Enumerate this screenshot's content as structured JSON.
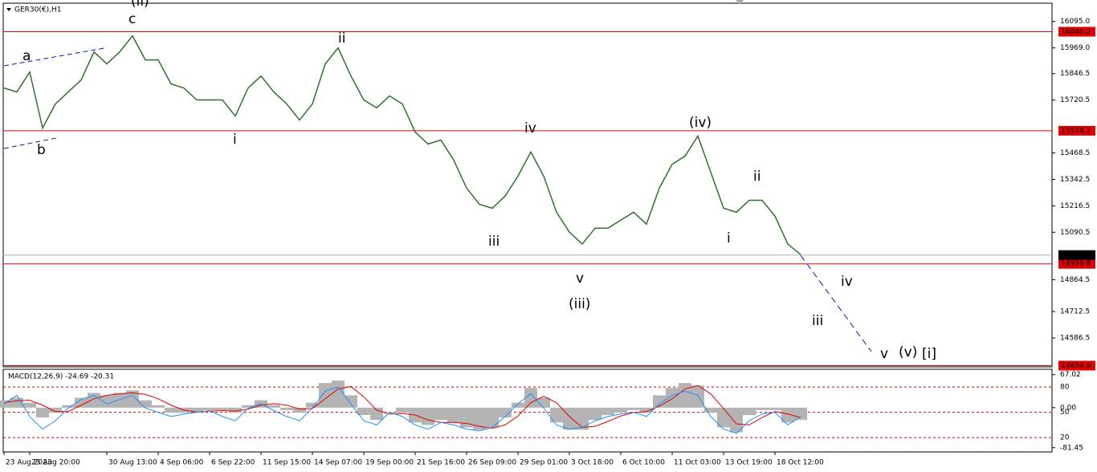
{
  "chart_data": [
    {
      "type": "line",
      "title": "GER30(€),H1",
      "color": "#2f6f2f",
      "categories": [
        "23 Aug 2023",
        null,
        "25 Aug 20:00",
        null,
        null,
        null,
        null,
        null,
        "30 Aug 13:00",
        null,
        null,
        null,
        "4 Sep 06:00",
        null,
        null,
        null,
        "6 Sep 22:00",
        null,
        null,
        null,
        "11 Sep 15:00",
        null,
        null,
        null,
        "14 Sep 07:00",
        null,
        null,
        null,
        "19 Sep 00:00",
        null,
        null,
        null,
        "21 Sep 16:00",
        null,
        null,
        null,
        "26 Sep 09:00",
        null,
        null,
        null,
        "29 Sep 01:00",
        null,
        null,
        null,
        "3 Oct 18:00",
        null,
        null,
        null,
        "6 Oct 10:00",
        null,
        null,
        null,
        "11 Oct 03:00",
        null,
        null,
        null,
        "13 Oct 19:00",
        null,
        null,
        null,
        "18 Oct 12:00",
        null,
        null
      ],
      "values": [
        15778,
        15759,
        15854,
        15587,
        15702,
        15759,
        15816,
        15950,
        15893,
        15950,
        16026,
        15912,
        15912,
        15797,
        15778,
        15721,
        15721,
        15721,
        15644,
        15778,
        15835,
        15759,
        15702,
        15625,
        15702,
        15893,
        15969,
        15835,
        15721,
        15683,
        15740,
        15702,
        15568,
        15511,
        15530,
        15434,
        15301,
        15224,
        15205,
        15263,
        15358,
        15473,
        15358,
        15186,
        15091,
        15034,
        15110,
        15110,
        15148,
        15186,
        15129,
        15301,
        15415,
        15453,
        15549,
        15377,
        15205,
        15186,
        15243,
        15243,
        15167,
        15034,
        14984
      ],
      "ylim": [
        14449,
        16182
      ],
      "yticks": [
        {
          "value": 16095,
          "label": "16095.0"
        },
        {
          "value": 15969,
          "label": "15969.0"
        },
        15846.5,
        15720.5,
        15468.5,
        15342.5,
        15216.5,
        15090.5,
        14864.5,
        14712.5,
        14586.5
      ],
      "hlines": [
        {
          "value": 16046.2,
          "color": "#e00000"
        },
        {
          "value": 15574.2,
          "color": "#e00000"
        },
        {
          "value": 14939.8,
          "color": "#e00000"
        },
        {
          "value": 14454.9,
          "color": "#e00000"
        },
        {
          "value": 14981.9,
          "color": "#b0b0b0"
        }
      ],
      "annotations": [
        {
          "text": "(ii)",
          "color": "#1010c0"
        },
        {
          "text": "a",
          "color": "#e020e0"
        },
        {
          "text": "b",
          "color": "#e020e0"
        },
        {
          "text": "c",
          "color": "#e020e0"
        },
        {
          "text": "i",
          "color": "#e020e0"
        },
        {
          "text": "ii",
          "color": "#e020e0"
        },
        {
          "text": "iii",
          "color": "#e020e0"
        },
        {
          "text": "iv",
          "color": "#e020e0"
        },
        {
          "text": "v",
          "color": "#e020e0"
        },
        {
          "text": "(iii)",
          "color": "#1010c0"
        },
        {
          "text": "(iv)",
          "color": "#1010c0"
        },
        {
          "text": "i",
          "color": "#e020e0"
        },
        {
          "text": "ii",
          "color": "#e020e0"
        },
        {
          "text": "iii",
          "color": "#e020e0"
        },
        {
          "text": "iv",
          "color": "#e020e0"
        },
        {
          "text": "v",
          "color": "#e020e0"
        },
        {
          "text": "(v)",
          "color": "#1010c0"
        },
        {
          "text": "[i]",
          "color": "#108010"
        }
      ]
    },
    {
      "type": "macd",
      "title": "MACD(12,26,9) -24.69 -20.31",
      "series": [
        {
          "color": "#b4b4b4",
          "values": [
            15,
            20,
            10,
            -20,
            -10,
            5,
            20,
            30,
            25,
            30,
            35,
            15,
            5,
            -10,
            -10,
            -8,
            -5,
            -5,
            -10,
            5,
            15,
            5,
            -5,
            -10,
            10,
            50,
            55,
            25,
            -15,
            -25,
            0,
            -10,
            -30,
            -35,
            -25,
            -30,
            -40,
            -45,
            -40,
            -20,
            10,
            40,
            20,
            -30,
            -45,
            -45,
            -25,
            -15,
            -10,
            -5,
            -10,
            25,
            40,
            50,
            45,
            -10,
            -40,
            -50,
            -15,
            -5,
            -5,
            -30,
            -25
          ]
        },
        {
          "color": "#e00000",
          "values": [
            10,
            14,
            15,
            5,
            -8,
            -8,
            5,
            18,
            25,
            28,
            30,
            27,
            18,
            5,
            -5,
            -9,
            -7,
            -6,
            -7,
            -3,
            5,
            8,
            5,
            -3,
            -2,
            18,
            38,
            43,
            22,
            -5,
            -13,
            -12,
            -15,
            -25,
            -30,
            -30,
            -32,
            -38,
            -42,
            -35,
            -17,
            10,
            23,
            10,
            -18,
            -40,
            -38,
            -28,
            -17,
            -10,
            -8,
            3,
            18,
            38,
            45,
            28,
            -2,
            -33,
            -35,
            -20,
            -8,
            -13,
            -20
          ]
        },
        {
          "color": "#1e90ff",
          "axis": "y2",
          "values": [
            60,
            70,
            45,
            30,
            40,
            55,
            65,
            70,
            60,
            65,
            70,
            55,
            50,
            45,
            48,
            50,
            52,
            45,
            40,
            55,
            60,
            52,
            45,
            40,
            55,
            75,
            80,
            60,
            40,
            35,
            50,
            45,
            35,
            30,
            38,
            35,
            30,
            28,
            32,
            45,
            60,
            72,
            55,
            35,
            30,
            32,
            40,
            45,
            48,
            50,
            45,
            60,
            70,
            75,
            70,
            45,
            30,
            25,
            40,
            48,
            50,
            35,
            45
          ]
        }
      ],
      "ylim": [
        -90,
        78
      ],
      "yticks": [
        67.02,
        {
          "value": 0,
          "label": "0.00"
        },
        -81.45
      ],
      "y2lim": [
        3,
        101
      ],
      "y2ticks": [
        80,
        50,
        20
      ],
      "level_color": "#e00000"
    }
  ]
}
